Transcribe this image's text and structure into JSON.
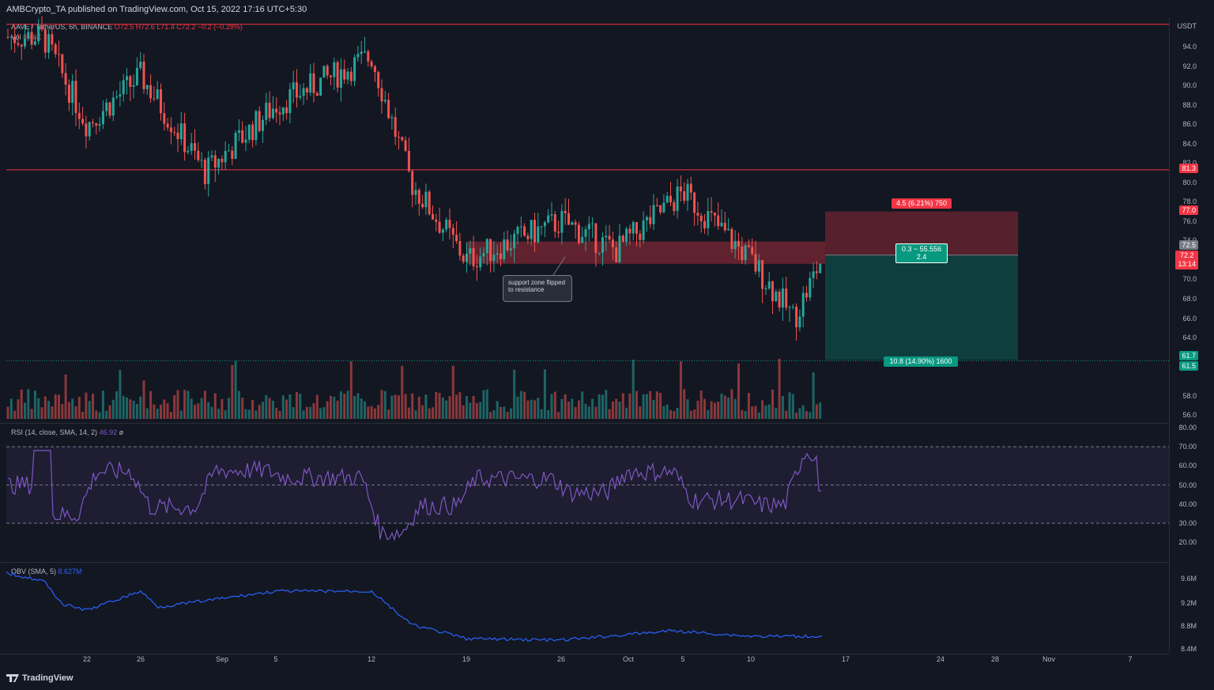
{
  "header": {
    "publisher": "AMBCrypto_TA published on TradingView.com, Oct 15, 2022 17:16 UTC+5:30"
  },
  "legend": {
    "symbol": "AAVE / TetherUS, 6h, BINANCE",
    "ohlc": "O72.5 H72.6 L71.4 C72.2 −0.2 (−0.28%)",
    "vol_label": "Vol",
    "vol_value": "8.46K",
    "rsi_label": "RSI (14, close, SMA, 14, 2)",
    "rsi_value": "46.92",
    "rsi_extra": "ø",
    "obv_label": "OBV (SMA, 5)",
    "obv_value": "8.627M"
  },
  "axis": {
    "currency": "USDT",
    "price_ticks": [
      "94.0",
      "92.0",
      "90.0",
      "88.0",
      "86.0",
      "84.0",
      "82.0",
      "80.0",
      "78.0",
      "76.0",
      "74.0",
      "70.0",
      "68.0",
      "66.0",
      "64.0",
      "58.0",
      "56.0"
    ],
    "rsi_ticks": [
      "80.00",
      "70.00",
      "60.00",
      "50.00",
      "40.00",
      "30.00",
      "20.00"
    ],
    "obv_ticks": [
      "9.6M",
      "9.2M",
      "8.8M",
      "8.4M"
    ],
    "x_ticks": [
      "22",
      "26",
      "Sep",
      "5",
      "12",
      "19",
      "26",
      "Oct",
      "5",
      "10",
      "17",
      "24",
      "28",
      "Nov",
      "7"
    ]
  },
  "tags": {
    "top_line": "81.3",
    "stop": "77.0",
    "entry": "72.5",
    "last": "72.2",
    "countdown": "13:14",
    "target1": "61.7",
    "target2": "61.5"
  },
  "position": {
    "risk_label": "4.5 (6.21%) 750",
    "ratio_line1": "0.3 ~ 55.556",
    "ratio_line2": "2.4",
    "reward_label": "10.8 (14.90%) 1600"
  },
  "annotation": {
    "text": "support zone flipped to resistance"
  },
  "colors": {
    "up": "#26a69a",
    "down": "#ef5350",
    "rsi": "#7e57c2",
    "obv": "#2962ff",
    "level": "#f23645"
  },
  "footer": {
    "brand": "TradingView"
  },
  "chart_data": {
    "type": "candlestick",
    "symbol": "AAVE / TetherUS",
    "timeframe": "6h",
    "horizontal_levels": [
      96.3,
      81.3
    ],
    "zone": [
      71.6,
      73.9
    ],
    "position": {
      "entry": 72.5,
      "stop": 77.0,
      "target": 61.7
    },
    "close_path_dates": [
      "Aug 16",
      "Aug 22",
      "Aug 26",
      "Sep 1",
      "Sep 5",
      "Sep 12",
      "Sep 15",
      "Sep 19",
      "Sep 26",
      "Oct 1",
      "Oct 5",
      "Oct 10",
      "Oct 13",
      "Oct 15"
    ],
    "close_path_values": [
      95.0,
      86.0,
      91.0,
      81.0,
      88.0,
      93.0,
      80.0,
      72.0,
      76.0,
      73.0,
      79.0,
      72.0,
      66.0,
      72.2
    ],
    "rsi_last": 46.92,
    "obv_last_millions": 8.627
  }
}
